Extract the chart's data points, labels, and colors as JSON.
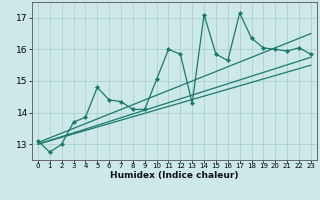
{
  "xlabel": "Humidex (Indice chaleur)",
  "bg_color": "#cce8e8",
  "grid_color": "#aacccc",
  "line_color": "#1a7a6a",
  "xlim": [
    -0.5,
    23.5
  ],
  "ylim": [
    12.5,
    17.5
  ],
  "xticks": [
    0,
    1,
    2,
    3,
    4,
    5,
    6,
    7,
    8,
    9,
    10,
    11,
    12,
    13,
    14,
    15,
    16,
    17,
    18,
    19,
    20,
    21,
    22,
    23
  ],
  "yticks": [
    13,
    14,
    15,
    16,
    17
  ],
  "series1_x": [
    0,
    1,
    2,
    3,
    4,
    5,
    6,
    7,
    8,
    9,
    10,
    11,
    12,
    13,
    14,
    15,
    16,
    17,
    18,
    19,
    20,
    21,
    22,
    23
  ],
  "series1_y": [
    13.1,
    12.75,
    13.0,
    13.7,
    13.85,
    14.8,
    14.4,
    14.35,
    14.1,
    14.1,
    15.05,
    16.0,
    15.85,
    14.3,
    17.1,
    15.85,
    15.65,
    17.15,
    16.35,
    16.05,
    16.0,
    15.95,
    16.05,
    15.85
  ],
  "series2_x": [
    0,
    23
  ],
  "series2_y": [
    13.05,
    16.5
  ],
  "series3_x": [
    0,
    23
  ],
  "series3_y": [
    13.0,
    15.75
  ],
  "series4_x": [
    0,
    23
  ],
  "series4_y": [
    13.0,
    15.5
  ]
}
